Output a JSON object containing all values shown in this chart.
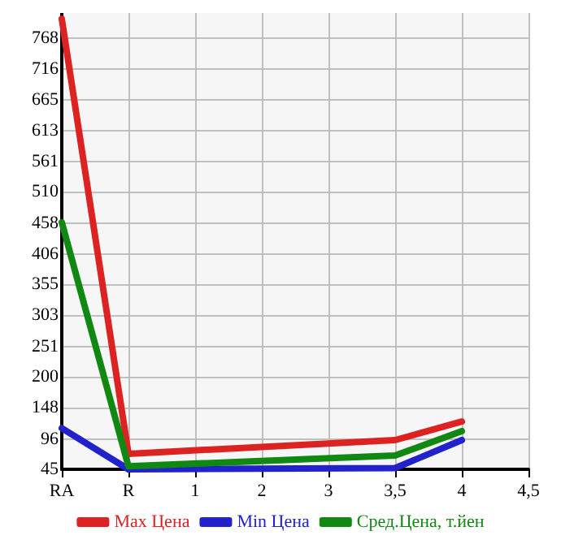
{
  "chart_data": {
    "type": "line",
    "categories": [
      "RA",
      "R",
      "1",
      "2",
      "3",
      "3,5",
      "4",
      "4,5"
    ],
    "series": [
      {
        "name": "Max Цена",
        "color": "#dd2222",
        "values": [
          800,
          71,
          null,
          null,
          null,
          94,
          125,
          null
        ]
      },
      {
        "name": "Min Цена",
        "color": "#2222cc",
        "values": [
          114,
          45,
          null,
          null,
          null,
          47,
          94,
          null
        ]
      },
      {
        "name": "Сред.Цена, т.йен",
        "color": "#118811",
        "values": [
          459,
          50,
          null,
          null,
          null,
          68,
          109,
          null
        ]
      }
    ],
    "ylim": [
      45,
      810
    ],
    "yticks": [
      45,
      96,
      148,
      200,
      251,
      303,
      355,
      406,
      458,
      510,
      561,
      613,
      665,
      716,
      768
    ],
    "grid": true,
    "legend": "bottom",
    "marker": "none",
    "line_style": "solid"
  }
}
